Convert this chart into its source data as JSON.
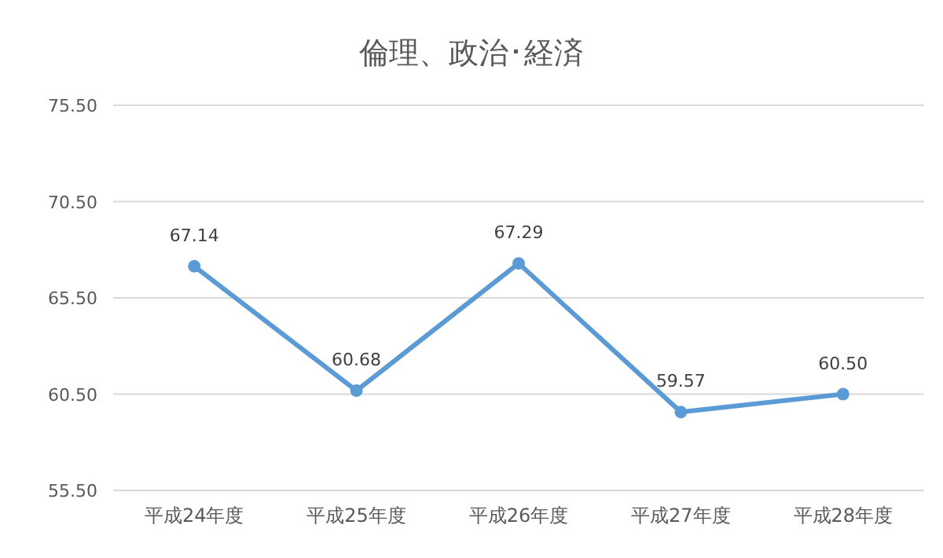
{
  "chart_data": {
    "type": "line",
    "title": "倫理、政治･経済",
    "categories": [
      "平成24年度",
      "平成25年度",
      "平成26年度",
      "平成27年度",
      "平成28年度"
    ],
    "values": [
      67.14,
      60.68,
      67.29,
      59.57,
      60.5
    ],
    "color": "#5b9bd5",
    "ylim": [
      55.5,
      75.5
    ],
    "yticks": [
      {
        "value": 55.5,
        "label": "55.50"
      },
      {
        "value": 60.5,
        "label": "60.50"
      },
      {
        "value": 65.5,
        "label": "65.50"
      },
      {
        "value": 70.5,
        "label": "70.50"
      },
      {
        "value": 75.5,
        "label": "75.50"
      }
    ],
    "grid": "y",
    "marker": "circle",
    "line_style": "solid",
    "value_labels": [
      "67.14",
      "60.68",
      "67.29",
      "59.57",
      "60.50"
    ]
  }
}
